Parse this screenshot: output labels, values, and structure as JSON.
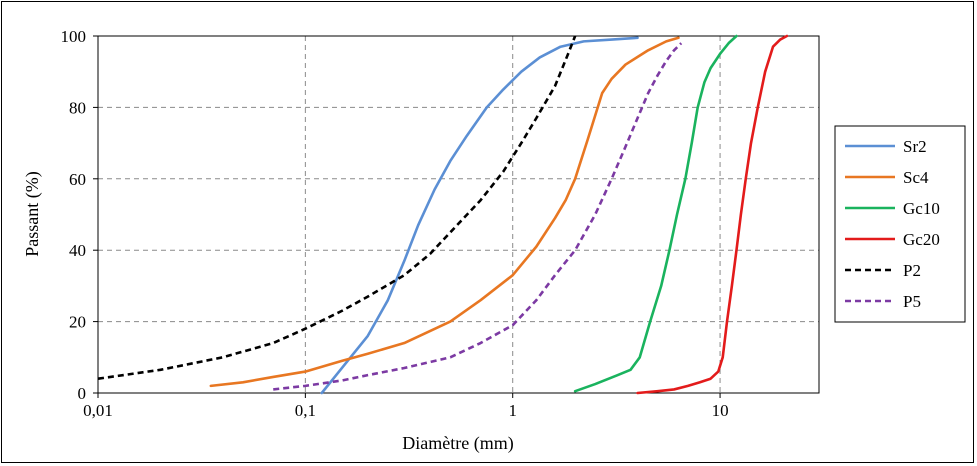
{
  "chart_data": {
    "type": "line",
    "xlabel": "Diamètre (mm)",
    "ylabel": "Passant (%)",
    "x_scale": "log",
    "xlim": [
      0.01,
      30
    ],
    "ylim": [
      0,
      100
    ],
    "x_ticks": [
      {
        "value": 0.01,
        "label": "0,01"
      },
      {
        "value": 0.1,
        "label": "0,1"
      },
      {
        "value": 1,
        "label": "1"
      },
      {
        "value": 10,
        "label": "10"
      }
    ],
    "y_ticks": [
      {
        "value": 0,
        "label": "0"
      },
      {
        "value": 20,
        "label": "20"
      },
      {
        "value": 40,
        "label": "40"
      },
      {
        "value": 60,
        "label": "60"
      },
      {
        "value": 80,
        "label": "80"
      },
      {
        "value": 100,
        "label": "100"
      }
    ],
    "grid": true,
    "legend_position": "right",
    "series": [
      {
        "name": "Sr2",
        "color": "#5b8fd4",
        "dashed": false,
        "points": [
          [
            0.12,
            0
          ],
          [
            0.15,
            7
          ],
          [
            0.2,
            16
          ],
          [
            0.25,
            26
          ],
          [
            0.3,
            37
          ],
          [
            0.35,
            47
          ],
          [
            0.42,
            57
          ],
          [
            0.5,
            65
          ],
          [
            0.6,
            72
          ],
          [
            0.75,
            80
          ],
          [
            0.9,
            85
          ],
          [
            1.1,
            90
          ],
          [
            1.35,
            94
          ],
          [
            1.7,
            97
          ],
          [
            2.2,
            98.5
          ],
          [
            3,
            99
          ],
          [
            4,
            99.5
          ]
        ]
      },
      {
        "name": "Sc4",
        "color": "#e87722",
        "dashed": false,
        "points": [
          [
            0.035,
            2
          ],
          [
            0.05,
            3
          ],
          [
            0.07,
            4.5
          ],
          [
            0.1,
            6
          ],
          [
            0.15,
            9
          ],
          [
            0.2,
            11
          ],
          [
            0.3,
            14
          ],
          [
            0.5,
            20
          ],
          [
            0.7,
            26
          ],
          [
            1,
            33
          ],
          [
            1.3,
            41
          ],
          [
            1.6,
            49
          ],
          [
            1.8,
            54
          ],
          [
            2,
            60
          ],
          [
            2.3,
            71
          ],
          [
            2.7,
            84
          ],
          [
            3,
            88
          ],
          [
            3.5,
            92
          ],
          [
            4.5,
            96
          ],
          [
            5.5,
            98.5
          ],
          [
            6.3,
            99.5
          ]
        ]
      },
      {
        "name": "Gc10",
        "color": "#1ab35e",
        "dashed": false,
        "points": [
          [
            2,
            0.5
          ],
          [
            2.5,
            2.5
          ],
          [
            3.2,
            5
          ],
          [
            3.7,
            6.5
          ],
          [
            4.1,
            10
          ],
          [
            4.6,
            20
          ],
          [
            5.2,
            30
          ],
          [
            5.7,
            40
          ],
          [
            6.2,
            50
          ],
          [
            6.8,
            60
          ],
          [
            7.3,
            70
          ],
          [
            7.8,
            80
          ],
          [
            8.4,
            87
          ],
          [
            9,
            91
          ],
          [
            10,
            95
          ],
          [
            11,
            98
          ],
          [
            12,
            100
          ]
        ]
      },
      {
        "name": "Gc20",
        "color": "#e31b1b",
        "dashed": false,
        "points": [
          [
            4,
            0
          ],
          [
            5,
            0.5
          ],
          [
            6,
            1
          ],
          [
            7,
            2
          ],
          [
            8,
            3
          ],
          [
            9,
            4
          ],
          [
            9.8,
            6
          ],
          [
            10.3,
            10
          ],
          [
            10.8,
            20
          ],
          [
            11.4,
            30
          ],
          [
            12,
            40
          ],
          [
            12.6,
            50
          ],
          [
            13.3,
            60
          ],
          [
            14.1,
            70
          ],
          [
            15.2,
            80
          ],
          [
            16.5,
            90
          ],
          [
            18,
            97
          ],
          [
            19.5,
            99
          ],
          [
            21,
            100
          ]
        ]
      },
      {
        "name": "P2",
        "color": "#000000",
        "dashed": true,
        "points": [
          [
            0.01,
            4
          ],
          [
            0.02,
            6.5
          ],
          [
            0.04,
            10
          ],
          [
            0.07,
            14
          ],
          [
            0.1,
            18
          ],
          [
            0.15,
            23
          ],
          [
            0.2,
            27
          ],
          [
            0.3,
            33
          ],
          [
            0.4,
            39
          ],
          [
            0.5,
            45
          ],
          [
            0.7,
            54
          ],
          [
            0.9,
            62
          ],
          [
            1.1,
            70
          ],
          [
            1.3,
            77
          ],
          [
            1.6,
            86
          ],
          [
            1.85,
            95
          ],
          [
            2,
            100
          ]
        ]
      },
      {
        "name": "P5",
        "color": "#7c3aa3",
        "dashed": true,
        "points": [
          [
            0.07,
            1
          ],
          [
            0.1,
            2
          ],
          [
            0.15,
            3.5
          ],
          [
            0.2,
            5
          ],
          [
            0.3,
            7
          ],
          [
            0.5,
            10
          ],
          [
            0.7,
            14
          ],
          [
            1,
            19
          ],
          [
            1.3,
            26
          ],
          [
            1.6,
            33
          ],
          [
            2,
            40
          ],
          [
            2.5,
            50
          ],
          [
            3,
            60
          ],
          [
            3.5,
            69
          ],
          [
            4,
            77
          ],
          [
            4.5,
            84
          ],
          [
            5,
            89
          ],
          [
            5.5,
            93
          ],
          [
            6,
            96
          ],
          [
            6.5,
            98
          ]
        ]
      }
    ]
  }
}
